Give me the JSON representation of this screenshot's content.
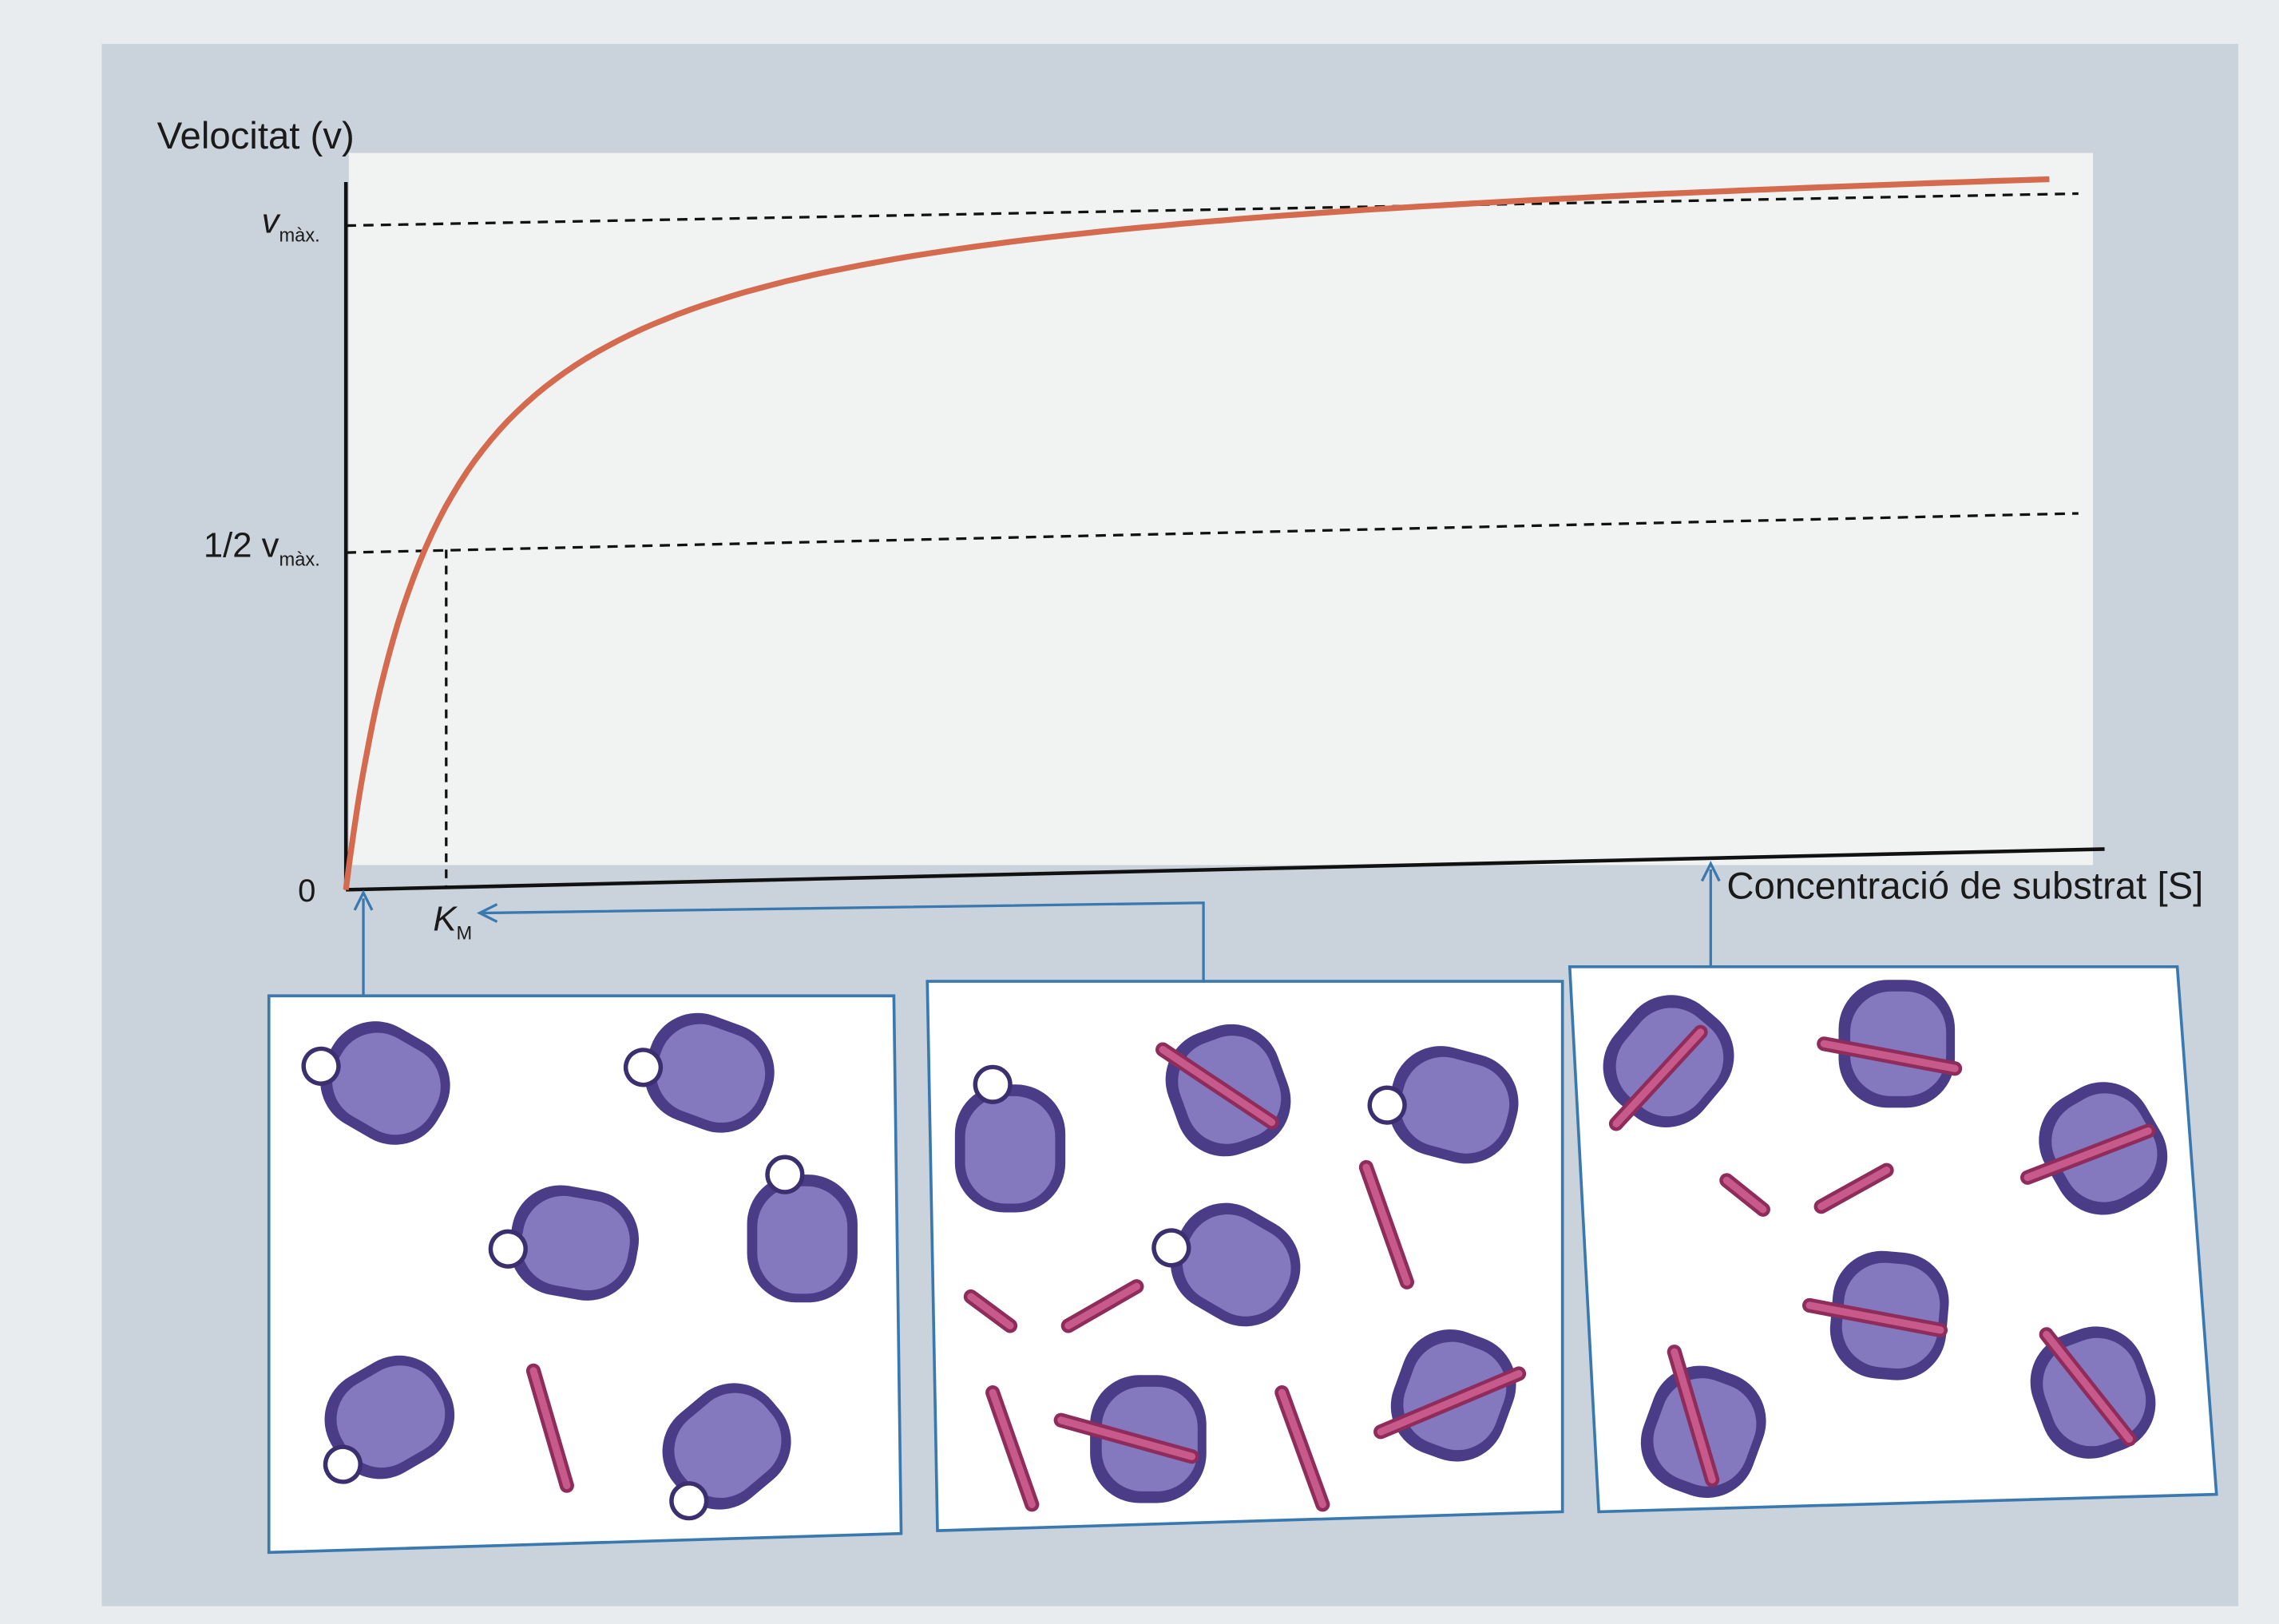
{
  "y_axis_label": "Velocitat (v)",
  "y_labels": {
    "vmax": {
      "main": "v",
      "sub": "màx."
    },
    "half_vmax": {
      "main": "1/2 v",
      "sub": "màx."
    },
    "zero": "0"
  },
  "km_label": {
    "main": "K",
    "sub": "M"
  },
  "x_axis_label": "Concentració de substrat [S]"
}
